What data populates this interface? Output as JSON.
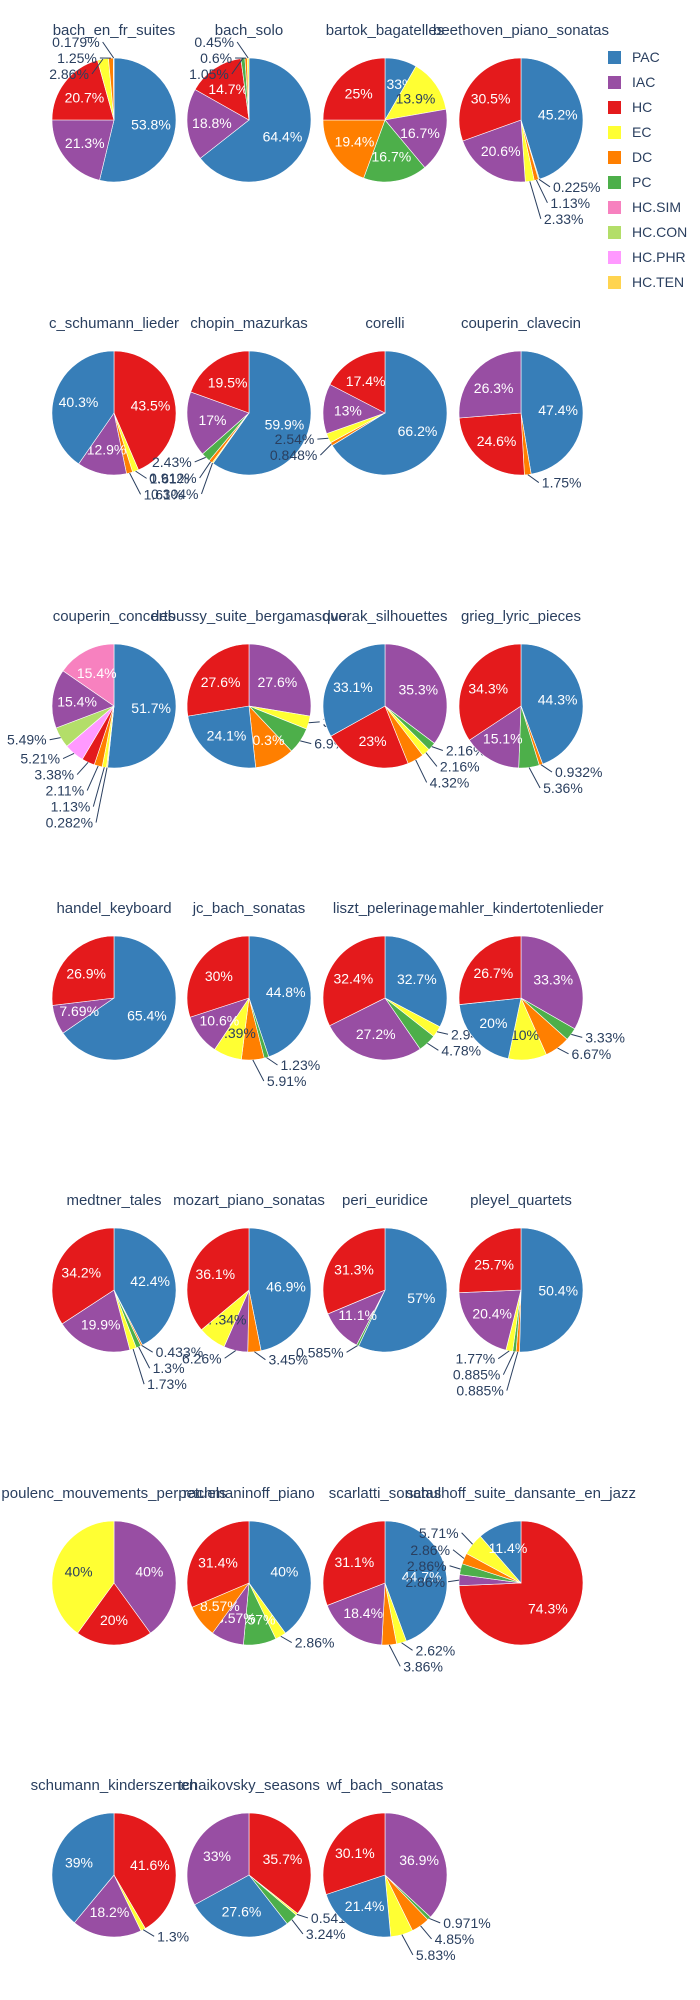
{
  "chart_data": {
    "type": "pie",
    "legend_position": "top-right",
    "legend": [
      {
        "name": "PAC",
        "color": "#377eb8"
      },
      {
        "name": "IAC",
        "color": "#984ea3"
      },
      {
        "name": "HC",
        "color": "#e41a1c"
      },
      {
        "name": "EC",
        "color": "#ffff33"
      },
      {
        "name": "DC",
        "color": "#ff7f00"
      },
      {
        "name": "PC",
        "color": "#4daf4a"
      },
      {
        "name": "HC.SIM",
        "color": "#f781bf"
      },
      {
        "name": "HC.CON",
        "color": "#b3de69"
      },
      {
        "name": "HC.PHR",
        "color": "#ff99ff"
      },
      {
        "name": "HC.TEN",
        "color": "#ffd450"
      }
    ],
    "pies": [
      {
        "title": "bach_en_fr_suites",
        "slices": [
          {
            "label": "PAC",
            "value": 53.8
          },
          {
            "label": "IAC",
            "value": 21.3
          },
          {
            "label": "HC",
            "value": 20.7
          },
          {
            "label": "EC",
            "value": 2.86
          },
          {
            "label": "DC",
            "value": 1.25
          },
          {
            "label": "PC",
            "value": 0.179
          }
        ]
      },
      {
        "title": "bach_solo",
        "slices": [
          {
            "label": "PAC",
            "value": 64.4
          },
          {
            "label": "IAC",
            "value": 18.8
          },
          {
            "label": "HC",
            "value": 14.7
          },
          {
            "label": "PC",
            "value": 1.05
          },
          {
            "label": "DC",
            "value": 0.6
          },
          {
            "label": "EC",
            "value": 0.45
          }
        ]
      },
      {
        "title": "bartok_bagatelles",
        "slices": [
          {
            "label": "PAC",
            "value": 8.33
          },
          {
            "label": "EC",
            "value": 13.9
          },
          {
            "label": "IAC",
            "value": 16.7
          },
          {
            "label": "PC",
            "value": 16.7
          },
          {
            "label": "DC",
            "value": 19.4
          },
          {
            "label": "HC",
            "value": 25
          }
        ]
      },
      {
        "title": "beethoven_piano_sonatas",
        "slices": [
          {
            "label": "PAC",
            "value": 45.2
          },
          {
            "label": "PC",
            "value": 0.225
          },
          {
            "label": "DC",
            "value": 1.13
          },
          {
            "label": "EC",
            "value": 2.33
          },
          {
            "label": "IAC",
            "value": 20.6
          },
          {
            "label": "HC",
            "value": 30.5
          }
        ]
      },
      {
        "title": "c_schumann_lieder",
        "slices": [
          {
            "label": "HC",
            "value": 43.5
          },
          {
            "label": "EC",
            "value": 1.61
          },
          {
            "label": "DC",
            "value": 1.61
          },
          {
            "label": "IAC",
            "value": 12.9
          },
          {
            "label": "PAC",
            "value": 40.3
          }
        ]
      },
      {
        "title": "chopin_mazurkas",
        "slices": [
          {
            "label": "PAC",
            "value": 59.9
          },
          {
            "label": "EC",
            "value": 0.304
          },
          {
            "label": "DC",
            "value": 0.912
          },
          {
            "label": "PC",
            "value": 2.43
          },
          {
            "label": "IAC",
            "value": 17
          },
          {
            "label": "HC",
            "value": 19.5
          }
        ]
      },
      {
        "title": "corelli",
        "slices": [
          {
            "label": "PAC",
            "value": 66.2
          },
          {
            "label": "DC",
            "value": 0.848
          },
          {
            "label": "EC",
            "value": 2.54
          },
          {
            "label": "IAC",
            "value": 13
          },
          {
            "label": "HC",
            "value": 17.4
          }
        ]
      },
      {
        "title": "couperin_clavecin",
        "slices": [
          {
            "label": "PAC",
            "value": 47.4
          },
          {
            "label": "DC",
            "value": 1.75
          },
          {
            "label": "HC",
            "value": 24.6
          },
          {
            "label": "IAC",
            "value": 26.3
          }
        ]
      },
      {
        "title": "couperin_concerts",
        "slices": [
          {
            "label": "PAC",
            "value": 51.7
          },
          {
            "label": "HC.TEN",
            "value": 0.282
          },
          {
            "label": "EC",
            "value": 1.13
          },
          {
            "label": "DC",
            "value": 2.11
          },
          {
            "label": "HC",
            "value": 3.38
          },
          {
            "label": "HC.PHR",
            "value": 5.21
          },
          {
            "label": "HC.CON",
            "value": 5.49
          },
          {
            "label": "IAC",
            "value": 15.4
          },
          {
            "label": "HC.SIM",
            "value": 15.4
          }
        ]
      },
      {
        "title": "debussy_suite_bergamasque",
        "slices": [
          {
            "label": "IAC",
            "value": 27.6
          },
          {
            "label": "EC",
            "value": 3.45
          },
          {
            "label": "PC",
            "value": 6.9
          },
          {
            "label": "DC",
            "value": 10.3
          },
          {
            "label": "PAC",
            "value": 24.1
          },
          {
            "label": "HC",
            "value": 27.6
          }
        ]
      },
      {
        "title": "dvorak_silhouettes",
        "slices": [
          {
            "label": "IAC",
            "value": 35.3
          },
          {
            "label": "PC",
            "value": 2.16
          },
          {
            "label": "EC",
            "value": 2.16
          },
          {
            "label": "DC",
            "value": 4.32
          },
          {
            "label": "HC",
            "value": 23
          },
          {
            "label": "PAC",
            "value": 33.1
          }
        ]
      },
      {
        "title": "grieg_lyric_pieces",
        "slices": [
          {
            "label": "PAC",
            "value": 44.3
          },
          {
            "label": "DC",
            "value": 0.932
          },
          {
            "label": "PC",
            "value": 5.36
          },
          {
            "label": "IAC",
            "value": 15.1
          },
          {
            "label": "HC",
            "value": 34.3
          }
        ]
      },
      {
        "title": "handel_keyboard",
        "slices": [
          {
            "label": "PAC",
            "value": 65.4
          },
          {
            "label": "IAC",
            "value": 7.69
          },
          {
            "label": "HC",
            "value": 26.9
          }
        ]
      },
      {
        "title": "jc_bach_sonatas",
        "slices": [
          {
            "label": "PAC",
            "value": 44.8
          },
          {
            "label": "PC",
            "value": 1.23
          },
          {
            "label": "DC",
            "value": 5.91
          },
          {
            "label": "EC",
            "value": 7.39
          },
          {
            "label": "IAC",
            "value": 10.6
          },
          {
            "label": "HC",
            "value": 30
          }
        ]
      },
      {
        "title": "liszt_pelerinage",
        "slices": [
          {
            "label": "PAC",
            "value": 32.7
          },
          {
            "label": "EC",
            "value": 2.94
          },
          {
            "label": "PC",
            "value": 4.78
          },
          {
            "label": "IAC",
            "value": 27.2
          },
          {
            "label": "HC",
            "value": 32.4
          }
        ]
      },
      {
        "title": "mahler_kindertotenlieder",
        "slices": [
          {
            "label": "IAC",
            "value": 33.3
          },
          {
            "label": "PC",
            "value": 3.33
          },
          {
            "label": "DC",
            "value": 6.67
          },
          {
            "label": "EC",
            "value": 10
          },
          {
            "label": "PAC",
            "value": 20
          },
          {
            "label": "HC",
            "value": 26.7
          }
        ]
      },
      {
        "title": "medtner_tales",
        "slices": [
          {
            "label": "PAC",
            "value": 42.4
          },
          {
            "label": "DC",
            "value": 0.433
          },
          {
            "label": "PC",
            "value": 1.3
          },
          {
            "label": "EC",
            "value": 1.73
          },
          {
            "label": "IAC",
            "value": 19.9
          },
          {
            "label": "HC",
            "value": 34.2
          }
        ]
      },
      {
        "title": "mozart_piano_sonatas",
        "slices": [
          {
            "label": "PAC",
            "value": 46.9
          },
          {
            "label": "DC",
            "value": 3.45
          },
          {
            "label": "IAC",
            "value": 6.26
          },
          {
            "label": "EC",
            "value": 7.34
          },
          {
            "label": "HC",
            "value": 36.1
          }
        ]
      },
      {
        "title": "peri_euridice",
        "slices": [
          {
            "label": "PAC",
            "value": 57
          },
          {
            "label": "PC",
            "value": 0.585
          },
          {
            "label": "IAC",
            "value": 11.1
          },
          {
            "label": "HC",
            "value": 31.3
          }
        ]
      },
      {
        "title": "pleyel_quartets",
        "slices": [
          {
            "label": "PAC",
            "value": 50.4
          },
          {
            "label": "DC",
            "value": 0.885
          },
          {
            "label": "PC",
            "value": 0.885
          },
          {
            "label": "EC",
            "value": 1.77
          },
          {
            "label": "IAC",
            "value": 20.4
          },
          {
            "label": "HC",
            "value": 25.7
          }
        ]
      },
      {
        "title": "poulenc_mouvements_perpetuels",
        "slices": [
          {
            "label": "IAC",
            "value": 40
          },
          {
            "label": "HC",
            "value": 20
          },
          {
            "label": "EC",
            "value": 40
          }
        ]
      },
      {
        "title": "rachmaninoff_piano",
        "slices": [
          {
            "label": "PAC",
            "value": 40
          },
          {
            "label": "EC",
            "value": 2.86
          },
          {
            "label": "PC",
            "value": 8.57
          },
          {
            "label": "IAC",
            "value": 8.57
          },
          {
            "label": "DC",
            "value": 8.57
          },
          {
            "label": "HC",
            "value": 31.4
          }
        ]
      },
      {
        "title": "scarlatti_sonatas",
        "slices": [
          {
            "label": "PAC",
            "value": 44.7
          },
          {
            "label": "EC",
            "value": 2.62
          },
          {
            "label": "DC",
            "value": 3.86
          },
          {
            "label": "IAC",
            "value": 18.4
          },
          {
            "label": "HC",
            "value": 31.1
          }
        ]
      },
      {
        "title": "schulhoff_suite_dansante_en_jazz",
        "slices": [
          {
            "label": "HC",
            "value": 74.3
          },
          {
            "label": "IAC",
            "value": 2.86
          },
          {
            "label": "PC",
            "value": 2.86
          },
          {
            "label": "DC",
            "value": 2.86
          },
          {
            "label": "EC",
            "value": 5.71
          },
          {
            "label": "PAC",
            "value": 11.4
          }
        ]
      },
      {
        "title": "schumann_kinderszenen",
        "slices": [
          {
            "label": "HC",
            "value": 41.6
          },
          {
            "label": "EC",
            "value": 1.3
          },
          {
            "label": "IAC",
            "value": 18.2
          },
          {
            "label": "PAC",
            "value": 39
          }
        ]
      },
      {
        "title": "tchaikovsky_seasons",
        "slices": [
          {
            "label": "HC",
            "value": 35.7
          },
          {
            "label": "EC",
            "value": 0.541
          },
          {
            "label": "PC",
            "value": 3.24
          },
          {
            "label": "PAC",
            "value": 27.6
          },
          {
            "label": "IAC",
            "value": 33
          }
        ]
      },
      {
        "title": "wf_bach_sonatas",
        "slices": [
          {
            "label": "IAC",
            "value": 36.9
          },
          {
            "label": "PC",
            "value": 0.971
          },
          {
            "label": "DC",
            "value": 4.85
          },
          {
            "label": "EC",
            "value": 5.83
          },
          {
            "label": "PAC",
            "value": 21.4
          },
          {
            "label": "HC",
            "value": 30.1
          }
        ]
      }
    ]
  }
}
